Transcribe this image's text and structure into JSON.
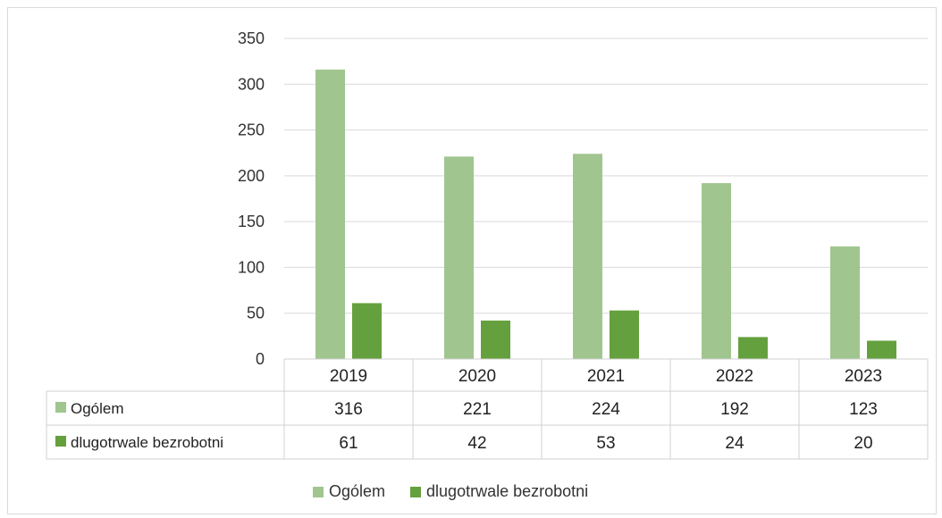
{
  "chart_data": {
    "type": "bar",
    "categories": [
      "2019",
      "2020",
      "2021",
      "2022",
      "2023"
    ],
    "series": [
      {
        "name": "Ogólem",
        "values": [
          316,
          221,
          224,
          192,
          123
        ],
        "color": "#a0c58f"
      },
      {
        "name": "dlugotrwale bezrobotni",
        "values": [
          61,
          42,
          53,
          24,
          20
        ],
        "color": "#65a03e"
      }
    ],
    "ylim": [
      0,
      350
    ],
    "yticks": [
      "0",
      "50",
      "100",
      "150",
      "200",
      "250",
      "300",
      "350"
    ],
    "grid": true,
    "legend": "bottom",
    "data_table": true
  },
  "legend": {
    "items": [
      {
        "label": "Ogólem",
        "color": "#a0c58f"
      },
      {
        "label": "dlugotrwale bezrobotni",
        "color": "#65a03e"
      }
    ]
  }
}
